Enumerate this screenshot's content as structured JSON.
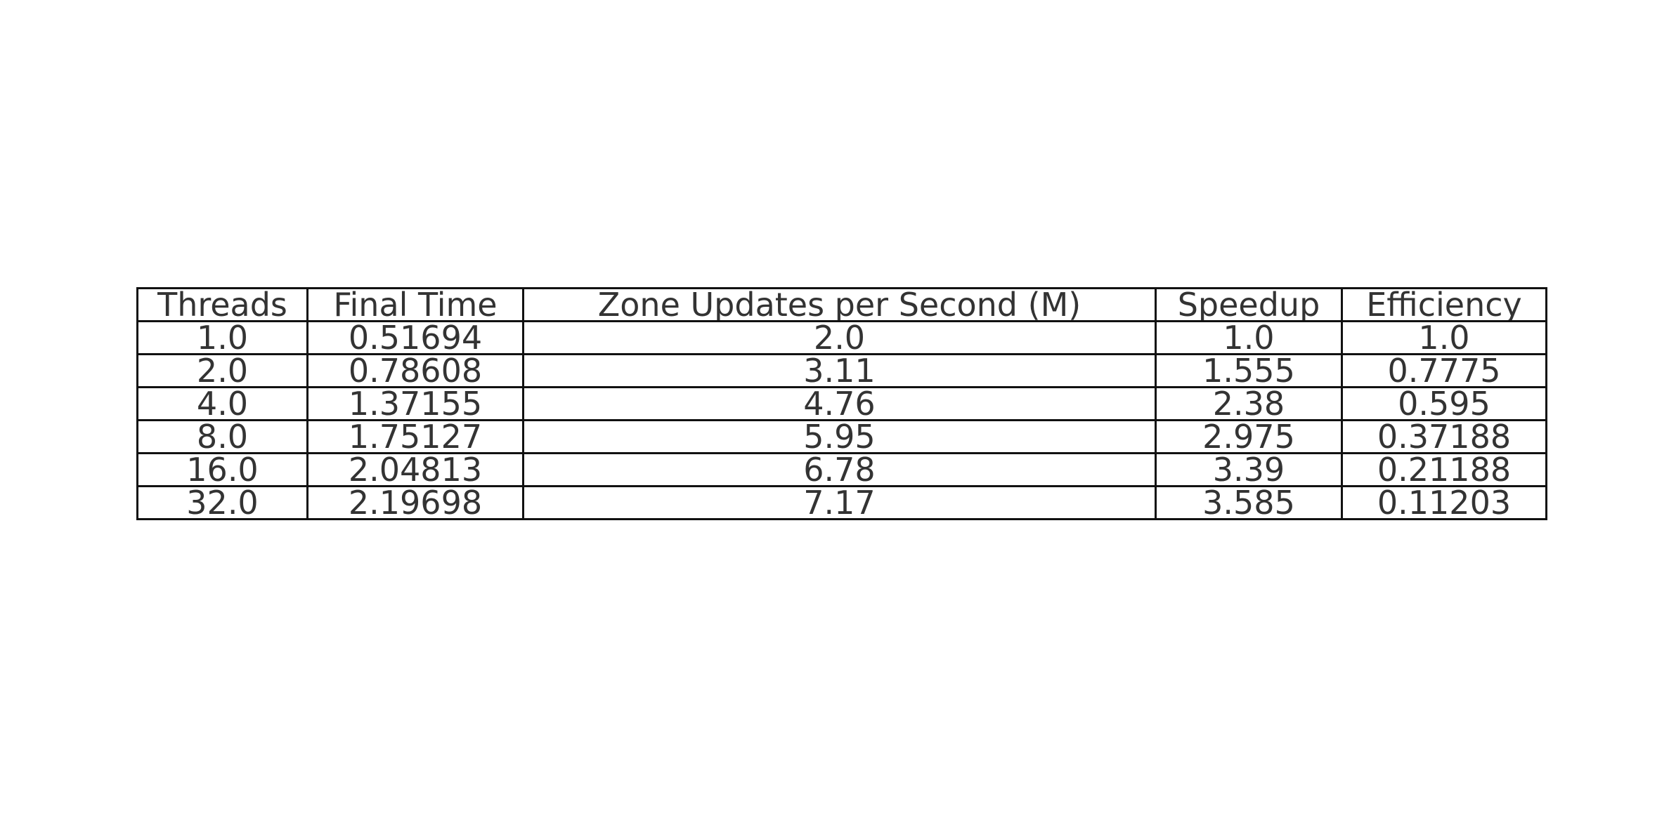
{
  "chart_data": {
    "type": "table",
    "columns": [
      "Threads",
      "Final Time",
      "Zone Updates per Second (M)",
      "Speedup",
      "Efficiency"
    ],
    "rows": [
      [
        "1.0",
        "0.51694",
        "2.0",
        "1.0",
        "1.0"
      ],
      [
        "2.0",
        "0.78608",
        "3.11",
        "1.555",
        "0.7775"
      ],
      [
        "4.0",
        "1.37155",
        "4.76",
        "2.38",
        "0.595"
      ],
      [
        "8.0",
        "1.75127",
        "5.95",
        "2.975",
        "0.37188"
      ],
      [
        "16.0",
        "2.04813",
        "6.78",
        "3.39",
        "0.21188"
      ],
      [
        "32.0",
        "2.19698",
        "7.17",
        "3.585",
        "0.11203"
      ]
    ]
  }
}
